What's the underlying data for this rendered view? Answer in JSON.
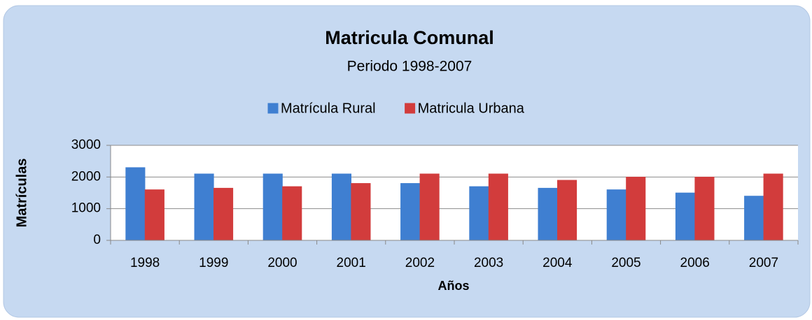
{
  "chart_data": {
    "type": "bar",
    "title": "Matricula Comunal",
    "subtitle": "Periodo 1998-2007",
    "x_label": "Años",
    "y_label": "Matrículas",
    "categories": [
      "1998",
      "1999",
      "2000",
      "2001",
      "2002",
      "2003",
      "2004",
      "2005",
      "2006",
      "2007"
    ],
    "series": [
      {
        "name": "Matrícula Rural",
        "color": "#3f7fd1",
        "values": [
          2300,
          2100,
          2100,
          2100,
          1800,
          1700,
          1650,
          1600,
          1500,
          1400
        ]
      },
      {
        "name": "Matricula Urbana",
        "color": "#d23c3c",
        "values": [
          1600,
          1650,
          1700,
          1800,
          2100,
          2100,
          1900,
          2000,
          2000,
          2100
        ]
      }
    ],
    "ylim": [
      0,
      3000
    ],
    "yticks": [
      0,
      1000,
      2000,
      3000
    ],
    "grid": true,
    "legend": "top"
  }
}
